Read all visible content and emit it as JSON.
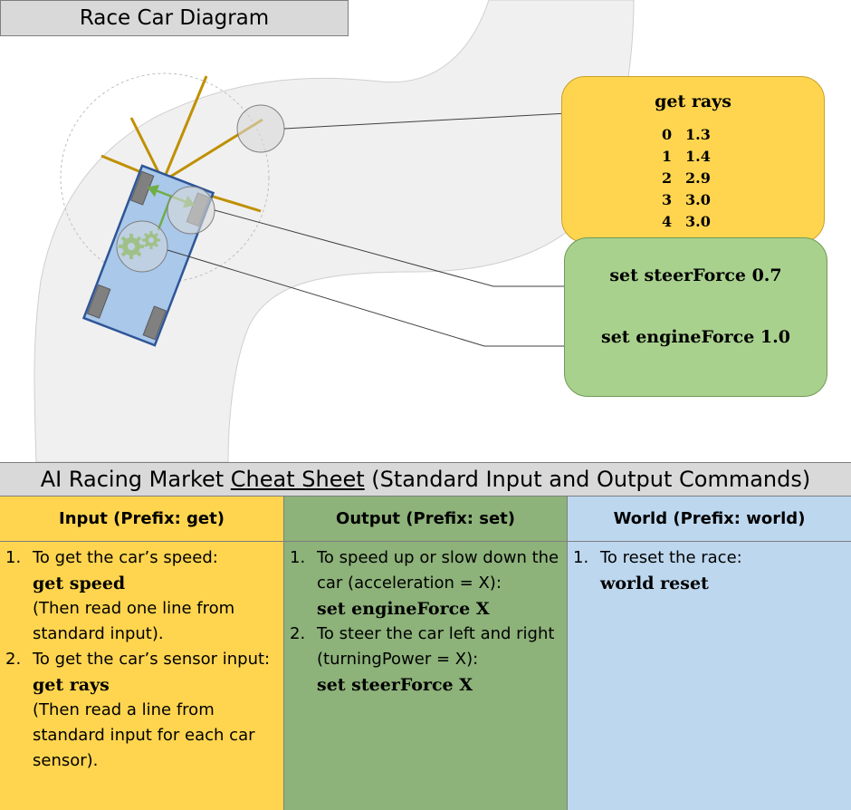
{
  "diagram": {
    "title": "Race Car Diagram",
    "rays_box": {
      "title": "get rays",
      "rows": [
        {
          "index": "0",
          "value": "1.3"
        },
        {
          "index": "1",
          "value": "1.4"
        },
        {
          "index": "2",
          "value": "2.9"
        },
        {
          "index": "3",
          "value": "3.0"
        },
        {
          "index": "4",
          "value": "3.0"
        }
      ]
    },
    "set_box": {
      "steer": "set steerForce 0.7",
      "engine": "set engineForce 1.0"
    },
    "colors": {
      "track": "#f0f0f0",
      "car_body": "#a9c8ea",
      "car_outline": "#2f5597",
      "rays": "#bf9000",
      "gear": "#70ad47",
      "rays_box": "#ffd54f",
      "set_box": "#a9d18e"
    }
  },
  "cheat_sheet": {
    "title_before": "AI Racing Market ",
    "title_underlined": "Cheat Sheet",
    "title_after": " (Standard Input and Output Commands)",
    "columns": [
      {
        "header": "Input (Prefix: get)",
        "items": [
          {
            "num": "1.",
            "text": "To get the car’s speed:",
            "code": "get speed",
            "note": "(Then read one line from standard input)."
          },
          {
            "num": "2.",
            "text": "To get the car’s sensor input:",
            "code": "get rays",
            "note": "(Then read a line from standard input for each car sensor)."
          }
        ]
      },
      {
        "header": "Output (Prefix: set)",
        "items": [
          {
            "num": "1.",
            "text": "To speed up or slow down the car (acceleration = X):",
            "code": "set engineForce X",
            "note": ""
          },
          {
            "num": "2.",
            "text": "To steer the car left and right (turningPower = X):",
            "code": "set steerForce X",
            "note": ""
          }
        ]
      },
      {
        "header": "World (Prefix: world)",
        "items": [
          {
            "num": "1.",
            "text": "To reset the race:",
            "code": "world reset",
            "note": ""
          }
        ]
      }
    ]
  }
}
